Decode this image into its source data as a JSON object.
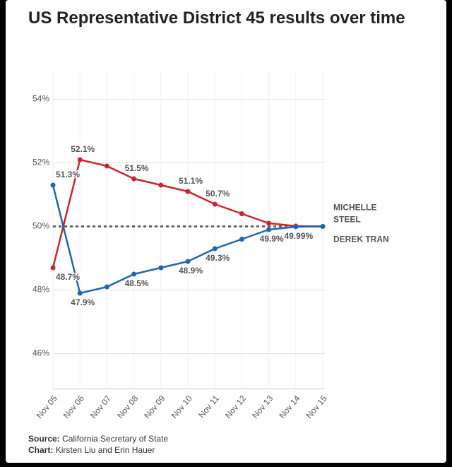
{
  "chart_data": {
    "type": "line",
    "title": "US Representative District 45 results over time",
    "categories": [
      "Nov 05",
      "Nov 06",
      "Nov 07",
      "Nov 08",
      "Nov 09",
      "Nov 10",
      "Nov 11",
      "Nov 12",
      "Nov 13",
      "Nov 14",
      "Nov 15"
    ],
    "series": [
      {
        "name": "MICHELLE STEEL",
        "color": "#c9252c",
        "values": [
          48.7,
          52.1,
          51.9,
          51.5,
          51.3,
          51.1,
          50.7,
          50.4,
          50.1,
          50.01,
          50.0
        ],
        "value_labels": [
          "48.7%",
          "52.1%",
          null,
          "51.5%",
          null,
          "51.1%",
          "50.7%",
          null,
          null,
          null,
          null
        ]
      },
      {
        "name": "DEREK TRAN",
        "color": "#1f66b0",
        "values": [
          51.3,
          47.9,
          48.1,
          48.5,
          48.7,
          48.9,
          49.3,
          49.6,
          49.9,
          49.99,
          50.0
        ],
        "value_labels": [
          "51.3%",
          "47.9%",
          null,
          "48.5%",
          null,
          "48.9%",
          "49.3%",
          null,
          "49.9%",
          "49.99%",
          null
        ]
      }
    ],
    "ylim": [
      44.9,
      54.9
    ],
    "yticks": [
      {
        "value": 46,
        "label": "46%"
      },
      {
        "value": 48,
        "label": "48%"
      },
      {
        "value": 50,
        "label": "50%"
      },
      {
        "value": 52,
        "label": "52%"
      },
      {
        "value": 54,
        "label": "54%"
      }
    ],
    "reference_line": 50,
    "grid": true,
    "source_label": "Source:",
    "source": "California Secretary of State",
    "credit_label": "Chart:",
    "credit": "Kirsten Liu and Erin Hauer"
  }
}
